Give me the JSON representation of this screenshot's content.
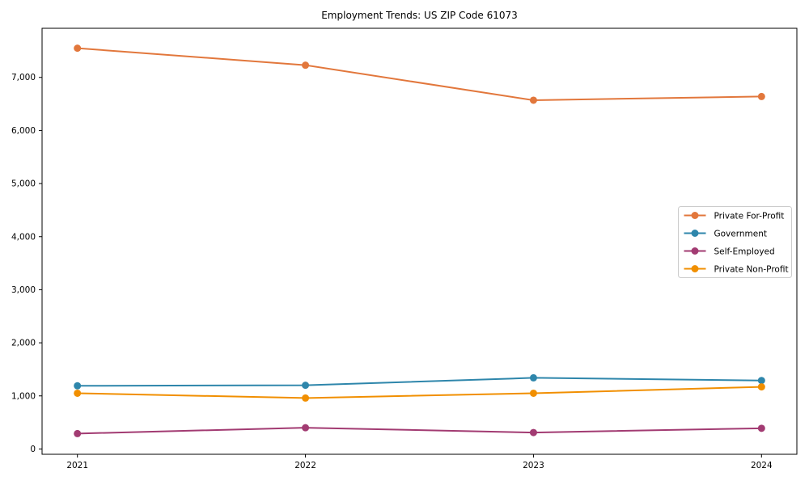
{
  "chart_data": {
    "type": "line",
    "title": "Employment Trends: US ZIP Code 61073",
    "xlabel": "",
    "ylabel": "",
    "x": [
      2021,
      2022,
      2023,
      2024
    ],
    "x_tick_labels": [
      "2021",
      "2022",
      "2023",
      "2024"
    ],
    "series": [
      {
        "name": "Private For-Profit",
        "color": "#E2773C",
        "values": [
          7550,
          7230,
          6570,
          6640
        ]
      },
      {
        "name": "Government",
        "color": "#2E86AB",
        "values": [
          1190,
          1200,
          1340,
          1290
        ]
      },
      {
        "name": "Self-Employed",
        "color": "#A23B72",
        "values": [
          290,
          400,
          310,
          390
        ]
      },
      {
        "name": "Private Non-Profit",
        "color": "#F18F01",
        "values": [
          1050,
          960,
          1050,
          1170
        ]
      }
    ],
    "yticks": [
      0,
      1000,
      2000,
      3000,
      4000,
      5000,
      6000,
      7000
    ],
    "ytick_labels": [
      "0",
      "1,000",
      "2,000",
      "3,000",
      "4,000",
      "5,000",
      "6,000",
      "7,000"
    ],
    "ylim": [
      -100,
      7925
    ],
    "xlim": [
      2020.845,
      2024.155
    ],
    "grid": false,
    "legend_position": "right",
    "legend_edge_color": "#cccccc",
    "marker": "circle",
    "axis_color": "#000000"
  }
}
